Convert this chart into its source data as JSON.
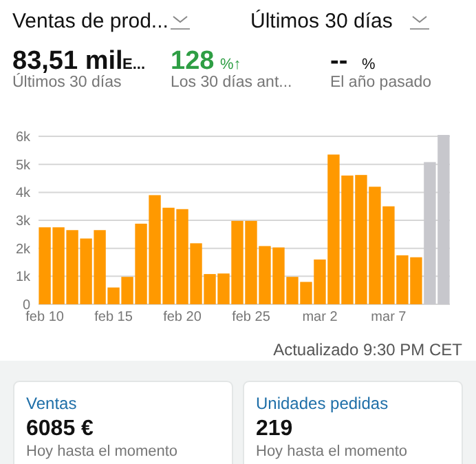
{
  "chart_data": [
    {
      "type": "other",
      "annotations": [
        "Ventas de prod...",
        "Últimos 30 días",
        "83,51 mil",
        "E...",
        "Últimos 30 días",
        "128",
        "%↑",
        "Los 30 días ant...",
        "--",
        "%",
        "El año pasado"
      ]
    },
    {
      "type": "bar",
      "categories": [
        "feb 10",
        null,
        null,
        null,
        null,
        "feb 15",
        null,
        null,
        null,
        null,
        "feb 20",
        null,
        null,
        null,
        null,
        "feb 25",
        null,
        null,
        null,
        null,
        "mar 2",
        null,
        null,
        null,
        null,
        "mar 7",
        null,
        null,
        null,
        null
      ],
      "values": [
        2750,
        2750,
        2650,
        2350,
        2650,
        600,
        980,
        2880,
        3900,
        3450,
        3400,
        2180,
        1080,
        1100,
        2980,
        2980,
        2080,
        2030,
        980,
        800,
        1600,
        5350,
        4600,
        4620,
        4200,
        3500,
        1750,
        1680,
        5080,
        6050
      ],
      "colors": [
        "#ff9900",
        "#ff9900",
        "#ff9900",
        "#ff9900",
        "#ff9900",
        "#ff9900",
        "#ff9900",
        "#ff9900",
        "#ff9900",
        "#ff9900",
        "#ff9900",
        "#ff9900",
        "#ff9900",
        "#ff9900",
        "#ff9900",
        "#ff9900",
        "#ff9900",
        "#ff9900",
        "#ff9900",
        "#ff9900",
        "#ff9900",
        "#ff9900",
        "#ff9900",
        "#ff9900",
        "#ff9900",
        "#ff9900",
        "#ff9900",
        "#ff9900",
        "#c7c7cc",
        "#c7c7cc"
      ],
      "ylim": [
        0,
        6100
      ],
      "yticks": [
        0,
        {
          "value": 1000,
          "label": "1k"
        },
        {
          "value": 2000,
          "label": "2k"
        },
        {
          "value": 3000,
          "label": "3k"
        },
        {
          "value": 4000,
          "label": "4k"
        },
        {
          "value": 5000,
          "label": "5k"
        },
        {
          "value": 6000,
          "label": "6k"
        }
      ],
      "grid": "y",
      "annotations": [
        "Actualizado 9:30 PM CET"
      ]
    },
    {
      "type": "other",
      "title": "Ventas",
      "annotations": [
        "6085 €",
        "Hoy hasta el momento"
      ]
    },
    {
      "type": "other",
      "title": "Unidades pedidas",
      "annotations": [
        "219",
        "Hoy hasta el momento"
      ]
    }
  ]
}
